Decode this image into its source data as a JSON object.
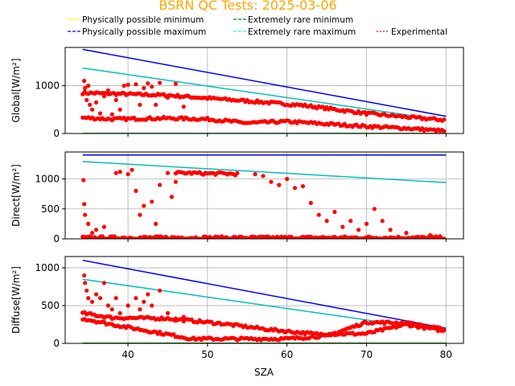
{
  "chart_data": {
    "title": "BSRN QC Tests: 2025-03-06",
    "title_color": "#ffa500",
    "type": "scatter",
    "xlabel": "SZA",
    "xlim": [
      32.1,
      82.2
    ],
    "xticks": [
      40,
      50,
      60,
      70,
      80
    ],
    "grid": true,
    "legend_position": "top",
    "legend": [
      {
        "label": "Physically possible minimum",
        "color": "#ffff00",
        "style": "dashed"
      },
      {
        "label": "Extremely rare minimum",
        "color": "#008000",
        "style": "dashed"
      },
      {
        "label": "Physically possible maximum",
        "color": "#0000ff",
        "style": "dashed"
      },
      {
        "label": "Extremely rare maximum",
        "color": "#00ffff",
        "style": "dashed"
      },
      {
        "label": "Experimental",
        "color": "#ff0000",
        "style": "dotted"
      }
    ],
    "panels": [
      {
        "ylabel": "Global[W/m²]",
        "ylim": [
          0,
          1800
        ],
        "yticks": [
          0,
          1000
        ],
        "limit_lines": [
          {
            "name": "Physically possible maximum",
            "color": "#0000ff",
            "points": [
              [
                34.3,
                1760
              ],
              [
                80,
                360
              ]
            ]
          },
          {
            "name": "Extremely rare maximum",
            "color": "#00bfbf",
            "points": [
              [
                34.3,
                1370
              ],
              [
                80,
                270
              ]
            ]
          },
          {
            "name": "Physically possible minimum",
            "color": "#ffff00",
            "points": [
              [
                34.3,
                -4
              ],
              [
                80,
                -4
              ]
            ]
          },
          {
            "name": "Extremely rare minimum",
            "color": "#008000",
            "points": [
              [
                34.3,
                2
              ],
              [
                80,
                2
              ]
            ]
          }
        ],
        "experimental": {
          "bands": [
            {
              "x": [
                34.3,
                45,
                55,
                62,
                70,
                76,
                80
              ],
              "y": [
                850,
                800,
                680,
                590,
                420,
                330,
                280
              ]
            },
            {
              "x": [
                34.3,
                38,
                45,
                50,
                55,
                60,
                65,
                70,
                75,
                80
              ],
              "y": [
                330,
                300,
                320,
                300,
                220,
                250,
                200,
                150,
                110,
                50
              ]
            }
          ],
          "scatter": [
            [
              34.5,
              1100
            ],
            [
              34.6,
              950
            ],
            [
              34.8,
              700
            ],
            [
              35.2,
              600
            ],
            [
              35.5,
              500
            ],
            [
              36,
              650
            ],
            [
              36.5,
              420
            ],
            [
              37,
              780
            ],
            [
              37.5,
              900
            ],
            [
              38,
              400
            ],
            [
              38.5,
              700
            ],
            [
              39.5,
              1000
            ],
            [
              40,
              1020
            ],
            [
              41,
              1030
            ],
            [
              42,
              950
            ],
            [
              42.5,
              1050
            ],
            [
              43,
              980
            ],
            [
              44,
              1060
            ],
            [
              45,
              750
            ],
            [
              46,
              1040
            ],
            [
              41.5,
              600
            ],
            [
              43.5,
              600
            ],
            [
              47,
              560
            ],
            [
              36,
              860
            ],
            [
              35,
              1000
            ],
            [
              39,
              500
            ]
          ]
        }
      },
      {
        "ylabel": "Direct[W/m²]",
        "ylim": [
          0,
          1450
        ],
        "yticks": [
          0,
          500,
          1000
        ],
        "limit_lines": [
          {
            "name": "Physically possible maximum",
            "color": "#0000ff",
            "points": [
              [
                34.3,
                1400
              ],
              [
                80,
                1400
              ]
            ]
          },
          {
            "name": "Extremely rare maximum",
            "color": "#00bfbf",
            "points": [
              [
                34.3,
                1290
              ],
              [
                80,
                940
              ]
            ]
          },
          {
            "name": "Physically possible minimum",
            "color": "#ffff00",
            "points": [
              [
                34.3,
                -4
              ],
              [
                80,
                -4
              ]
            ]
          },
          {
            "name": "Extremely rare minimum",
            "color": "#008000",
            "points": [
              [
                34.3,
                2
              ],
              [
                80,
                2
              ]
            ]
          }
        ],
        "experimental": {
          "bands": [
            {
              "x": [
                34.3,
                80
              ],
              "y": [
                20,
                20
              ]
            },
            {
              "x": [
                46,
                48,
                50,
                52,
                54
              ],
              "y": [
                1100,
                1100,
                1090,
                1090,
                1080
              ]
            }
          ],
          "scatter": [
            [
              34.4,
              980
            ],
            [
              34.5,
              580
            ],
            [
              34.6,
              400
            ],
            [
              35,
              250
            ],
            [
              35.5,
              100
            ],
            [
              36,
              150
            ],
            [
              37,
              200
            ],
            [
              38.5,
              1100
            ],
            [
              39,
              1120
            ],
            [
              40,
              1080
            ],
            [
              40.5,
              1150
            ],
            [
              41,
              800
            ],
            [
              41.5,
              400
            ],
            [
              42,
              550
            ],
            [
              43,
              620
            ],
            [
              43.5,
              250
            ],
            [
              44,
              900
            ],
            [
              45,
              1100
            ],
            [
              45.5,
              700
            ],
            [
              46,
              950
            ],
            [
              56,
              1080
            ],
            [
              57,
              1050
            ],
            [
              58,
              950
            ],
            [
              59,
              900
            ],
            [
              60,
              1000
            ],
            [
              61,
              850
            ],
            [
              62,
              880
            ],
            [
              63,
              600
            ],
            [
              64,
              400
            ],
            [
              65,
              300
            ],
            [
              66,
              450
            ],
            [
              67,
              200
            ],
            [
              68,
              300
            ],
            [
              69,
              150
            ],
            [
              70,
              250
            ],
            [
              71,
              500
            ],
            [
              72,
              300
            ],
            [
              73,
              150
            ],
            [
              75,
              100
            ],
            [
              78,
              60
            ]
          ]
        }
      },
      {
        "ylabel": "Diffuse[W/m²]",
        "ylim": [
          0,
          1150
        ],
        "yticks": [
          0,
          500,
          1000
        ],
        "limit_lines": [
          {
            "name": "Physically possible maximum",
            "color": "#0000ff",
            "points": [
              [
                34.3,
                1100
              ],
              [
                80,
                200
              ]
            ]
          },
          {
            "name": "Extremely rare maximum",
            "color": "#00bfbf",
            "points": [
              [
                34.3,
                850
              ],
              [
                80,
                160
              ]
            ]
          },
          {
            "name": "Physically possible minimum",
            "color": "#ffff00",
            "points": [
              [
                34.3,
                -4
              ],
              [
                80,
                -4
              ]
            ]
          },
          {
            "name": "Extremely rare minimum",
            "color": "#008000",
            "points": [
              [
                34.3,
                2
              ],
              [
                80,
                2
              ]
            ]
          }
        ],
        "experimental": {
          "bands": [
            {
              "x": [
                34.3,
                38,
                45,
                52,
                58,
                64,
                70,
                75,
                80
              ],
              "y": [
                400,
                340,
                330,
                260,
                180,
                120,
                130,
                250,
                160
              ]
            },
            {
              "x": [
                34.3,
                38,
                45,
                48,
                55,
                60,
                65,
                70,
                75,
                80
              ],
              "y": [
                330,
                250,
                120,
                60,
                60,
                60,
                100,
                280,
                270,
                180
              ]
            }
          ],
          "scatter": [
            [
              34.5,
              900
            ],
            [
              34.6,
              800
            ],
            [
              34.8,
              700
            ],
            [
              35,
              600
            ],
            [
              35.5,
              550
            ],
            [
              36,
              650
            ],
            [
              36.5,
              600
            ],
            [
              37,
              800
            ],
            [
              37.5,
              500
            ],
            [
              38,
              450
            ],
            [
              38.5,
              600
            ],
            [
              39,
              400
            ],
            [
              40,
              500
            ],
            [
              41,
              600
            ],
            [
              41.5,
              450
            ],
            [
              42,
              550
            ],
            [
              42.5,
              650
            ],
            [
              43,
              500
            ],
            [
              44,
              700
            ],
            [
              45,
              400
            ],
            [
              46,
              300
            ],
            [
              47,
              350
            ]
          ]
        }
      }
    ]
  }
}
